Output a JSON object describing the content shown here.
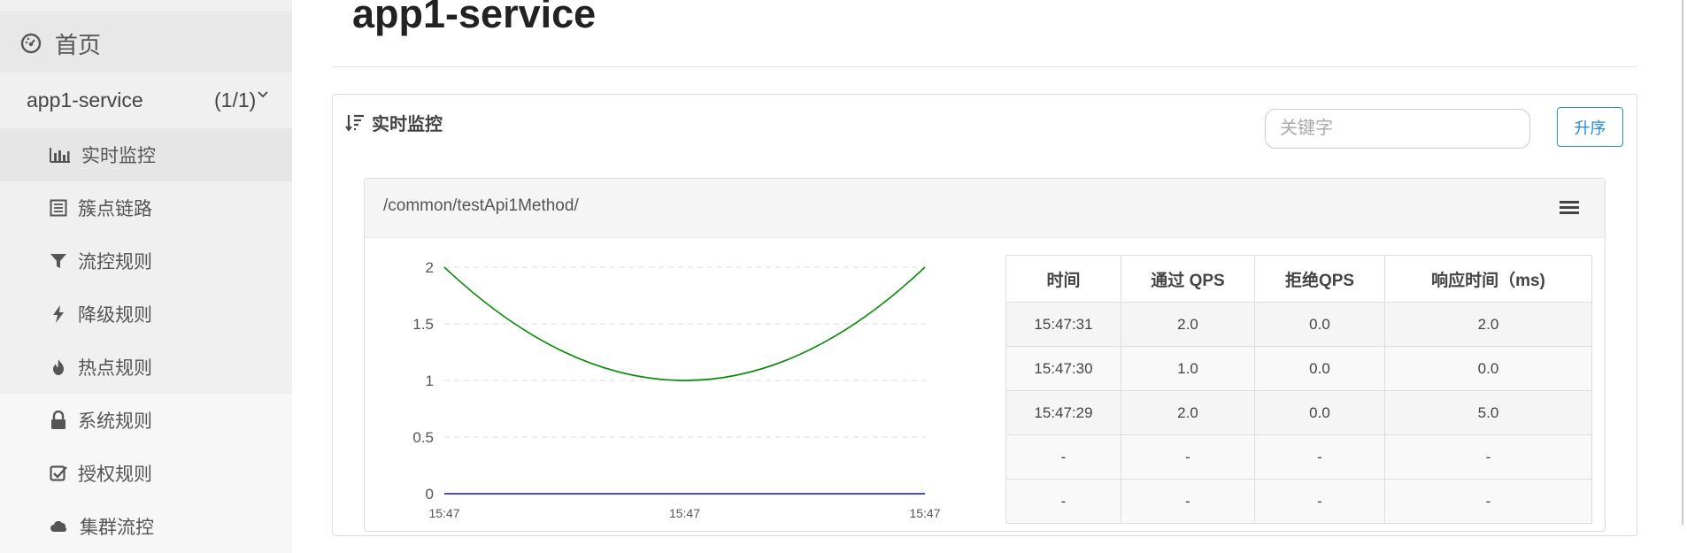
{
  "sidebar": {
    "home_label": "首页",
    "app_name": "app1-service",
    "app_count": "(1/1)",
    "items": [
      {
        "label": "实时监控",
        "icon": "bar-chart-icon",
        "active": true
      },
      {
        "label": "簇点链路",
        "icon": "list-icon"
      },
      {
        "label": "流控规则",
        "icon": "filter-icon"
      },
      {
        "label": "降级规则",
        "icon": "bolt-icon"
      },
      {
        "label": "热点规则",
        "icon": "fire-icon"
      },
      {
        "label": "系统规则",
        "icon": "lock-icon"
      },
      {
        "label": "授权规则",
        "icon": "check-square-icon"
      },
      {
        "label": "集群流控",
        "icon": "cloud-icon"
      }
    ]
  },
  "main": {
    "title": "app1-service",
    "panel_title": "实时监控",
    "search_placeholder": "关键字",
    "sort_button": "升序"
  },
  "card": {
    "resource": "/common/testApi1Method/"
  },
  "table": {
    "headers": [
      "时间",
      "通过 QPS",
      "拒绝QPS",
      "响应时间（ms)"
    ],
    "rows": [
      [
        "15:47:31",
        "2.0",
        "0.0",
        "2.0"
      ],
      [
        "15:47:30",
        "1.0",
        "0.0",
        "0.0"
      ],
      [
        "15:47:29",
        "2.0",
        "0.0",
        "5.0"
      ],
      [
        "-",
        "-",
        "-",
        "-"
      ],
      [
        "-",
        "-",
        "-",
        "-"
      ]
    ]
  },
  "chart_data": {
    "type": "line",
    "title": "",
    "xlabel": "",
    "ylabel": "",
    "x": [
      "15:47",
      "15:47",
      "15:47"
    ],
    "ylim": [
      0,
      2
    ],
    "yticks": [
      "0",
      "0.5",
      "1",
      "1.5",
      "2"
    ],
    "series": [
      {
        "name": "通过 QPS",
        "color": "#0a8a0a",
        "values": [
          2,
          1,
          2
        ]
      },
      {
        "name": "拒绝QPS",
        "color": "#1010d0",
        "values": [
          0,
          0,
          0
        ]
      }
    ]
  },
  "colors": {
    "accent": "#2a8be0",
    "sidebar_bg": "#f0f0f0",
    "pass_line": "#0a8a0a",
    "block_line": "#1010d0"
  }
}
